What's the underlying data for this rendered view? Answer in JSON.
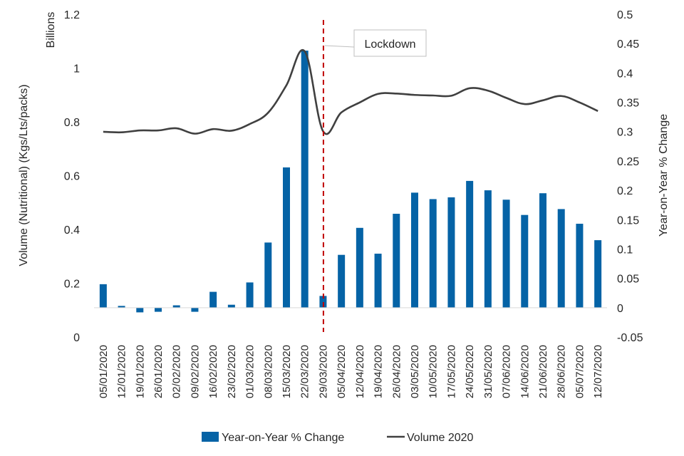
{
  "chart_data": {
    "type": "bar",
    "left_axis": {
      "title": "Volume (Nutritional) (Kgs/Lts/packs)",
      "units": "Billions",
      "range": [
        0,
        1.2
      ],
      "ticks": [
        "0",
        "0.2",
        "0.4",
        "0.6",
        "0.8",
        "1",
        "1.2"
      ],
      "tick_values": [
        0,
        0.2,
        0.4,
        0.6,
        0.8,
        1.0,
        1.2
      ]
    },
    "right_axis": {
      "title": "Year-on-Year  % Change",
      "range": [
        -0.05,
        0.5
      ],
      "ticks": [
        "-0.05",
        "0",
        "0.05",
        "0.1",
        "0.15",
        "0.2",
        "0.25",
        "0.3",
        "0.35",
        "0.4",
        "0.45",
        "0.5"
      ],
      "tick_values": [
        -0.05,
        0,
        0.05,
        0.1,
        0.15,
        0.2,
        0.25,
        0.3,
        0.35,
        0.4,
        0.45,
        0.5
      ]
    },
    "categories": [
      "05/01/2020",
      "12/01/2020",
      "19/01/2020",
      "26/01/2020",
      "02/02/2020",
      "09/02/2020",
      "16/02/2020",
      "23/02/2020",
      "01/03/2020",
      "08/03/2020",
      "15/03/2020",
      "22/03/2020",
      "29/03/2020",
      "05/04/2020",
      "12/04/2020",
      "19/04/2020",
      "26/04/2020",
      "03/05/2020",
      "10/05/2020",
      "17/05/2020",
      "24/05/2020",
      "31/05/2020",
      "07/06/2020",
      "14/06/2020",
      "21/06/2020",
      "28/06/2020",
      "05/07/2020",
      "12/07/2020"
    ],
    "series": [
      {
        "name": "Year-on-Year % Change",
        "kind": "bar",
        "axis": "right",
        "color": "#0563A6",
        "values": [
          0.04,
          0.003,
          -0.008,
          -0.007,
          0.004,
          -0.007,
          0.027,
          0.005,
          0.043,
          0.111,
          0.239,
          0.438,
          0.02,
          0.09,
          0.136,
          0.092,
          0.16,
          0.196,
          0.185,
          0.188,
          0.216,
          0.2,
          0.184,
          0.158,
          0.195,
          0.168,
          0.143,
          0.115
        ]
      },
      {
        "name": "Volume 2020",
        "kind": "line",
        "axis": "left",
        "color": "#404040",
        "values": [
          0.763,
          0.761,
          0.768,
          0.768,
          0.776,
          0.756,
          0.773,
          0.767,
          0.792,
          0.834,
          0.936,
          1.062,
          0.765,
          0.835,
          0.872,
          0.904,
          0.905,
          0.9,
          0.898,
          0.897,
          0.925,
          0.916,
          0.889,
          0.866,
          0.88,
          0.896,
          0.872,
          0.84
        ]
      }
    ],
    "annotation": {
      "label": "Lockdown",
      "at_category": "29/03/2020",
      "color": "#C00000"
    },
    "legend": {
      "position": "bottom",
      "items": [
        "Year-on-Year % Change",
        "Volume 2020"
      ]
    },
    "grid": false
  }
}
